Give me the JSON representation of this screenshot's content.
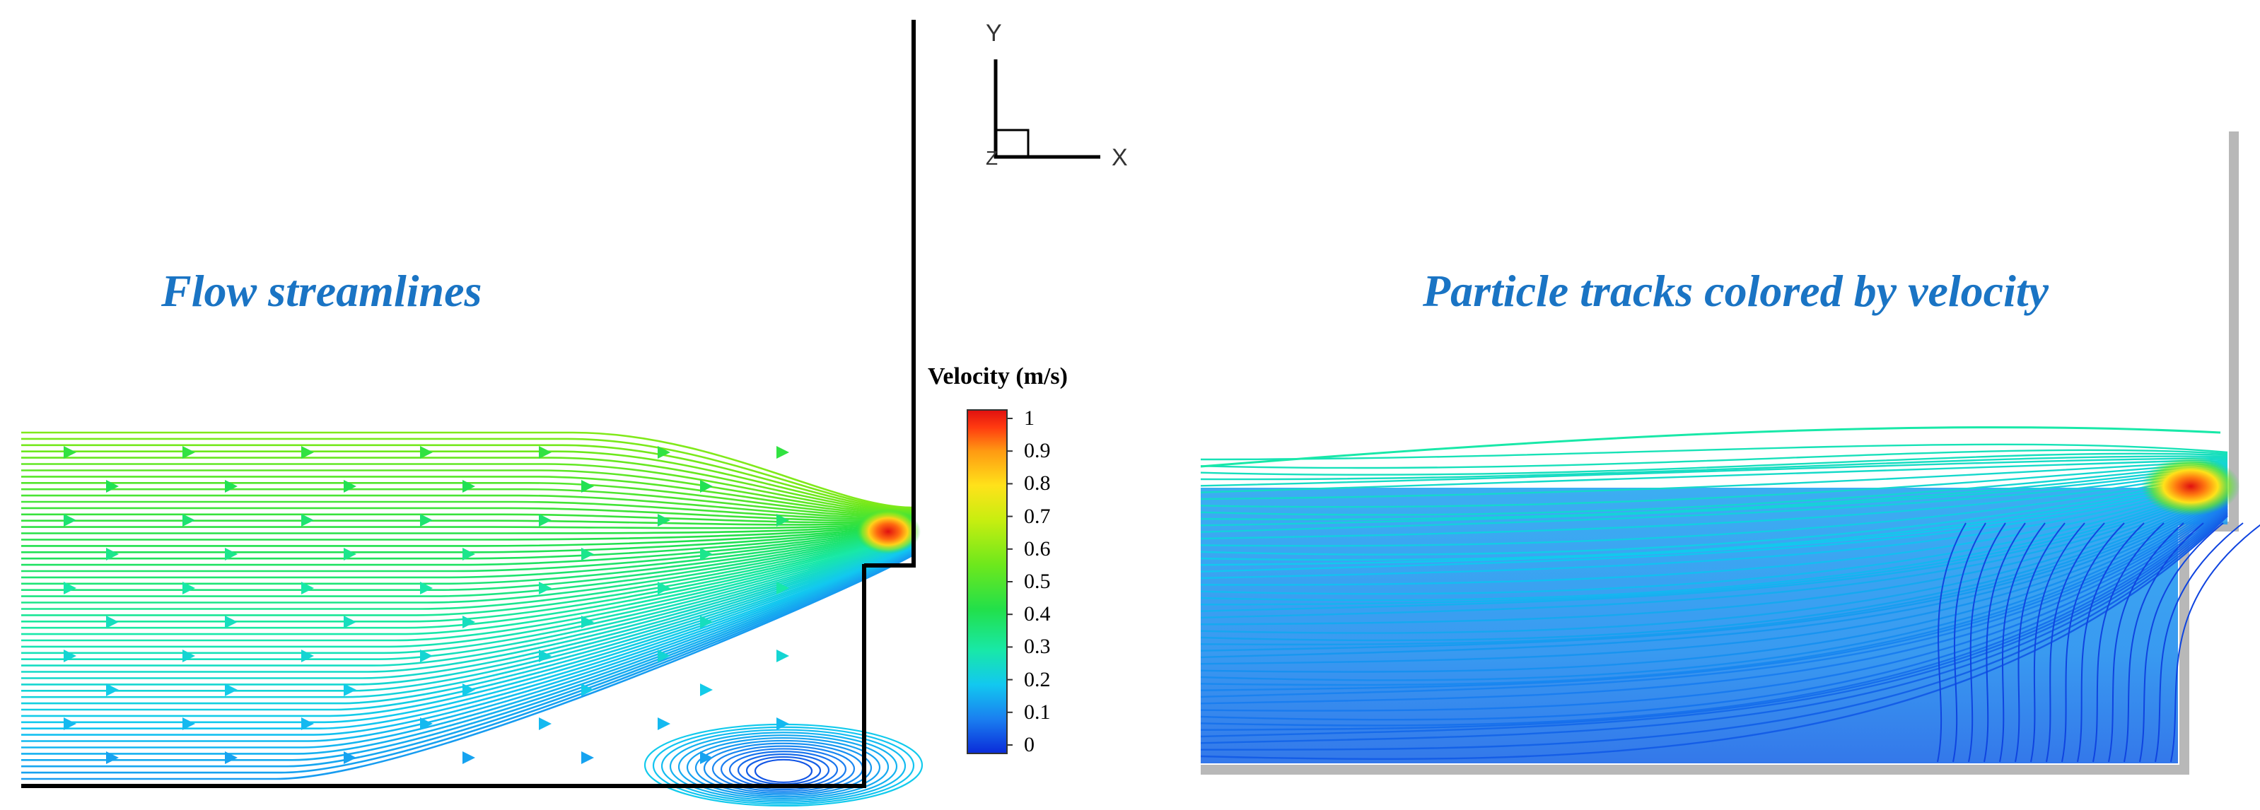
{
  "titles": {
    "left": "Flow streamlines",
    "right": "Particle tracks colored by velocity"
  },
  "axes_triad": {
    "y_label": "Y",
    "x_label": "X",
    "z_label": "Z"
  },
  "colorbar": {
    "title": "Velocity (m/s)",
    "ticks": [
      "1",
      "0.9",
      "0.8",
      "0.7",
      "0.6",
      "0.5",
      "0.4",
      "0.3",
      "0.2",
      "0.1",
      "0"
    ],
    "min": 0,
    "max": 1,
    "colors": [
      "#0a2bd9",
      "#1a7ff0",
      "#12c8f0",
      "#18e8a8",
      "#22e04a",
      "#6ee81c",
      "#c8ee10",
      "#ffe21a",
      "#ff9a12",
      "#ff3a10",
      "#e01010"
    ]
  },
  "colors": {
    "title": "#1a74c4",
    "wall": "#000000",
    "shadow": "#b8b8b8"
  }
}
